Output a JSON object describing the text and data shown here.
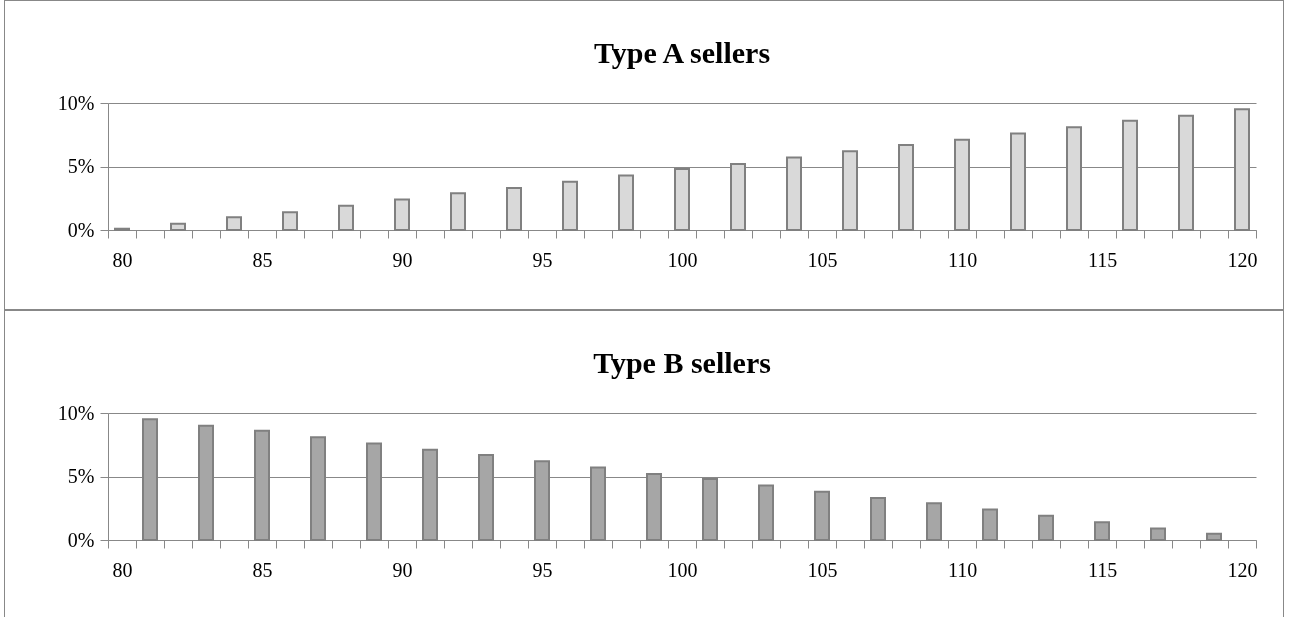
{
  "chart_data": [
    {
      "type": "bar",
      "title": "Type A sellers",
      "categories": [
        "80",
        null,
        null,
        null,
        null,
        "85",
        null,
        null,
        null,
        null,
        "90",
        null,
        null,
        null,
        null,
        "95",
        null,
        null,
        null,
        null,
        "100",
        null,
        null,
        null,
        null,
        "105",
        null,
        null,
        null,
        null,
        "110",
        null,
        null,
        null,
        null,
        "115",
        null,
        null,
        null,
        null,
        "120"
      ],
      "values": [
        0.1,
        null,
        0.5,
        null,
        1.0,
        null,
        1.4,
        null,
        1.9,
        null,
        2.4,
        null,
        2.9,
        null,
        3.3,
        null,
        3.8,
        null,
        4.3,
        null,
        4.8,
        null,
        5.2,
        null,
        5.7,
        null,
        6.2,
        null,
        6.7,
        null,
        7.1,
        null,
        7.6,
        null,
        8.1,
        null,
        8.6,
        null,
        9.0,
        null,
        9.5
      ],
      "color": "#d9d9d9",
      "ylim": [
        0,
        10
      ],
      "yticks": [
        {
          "value": 0,
          "label": "0%"
        },
        {
          "value": 5,
          "label": "5%"
        },
        {
          "value": 10,
          "label": "10%"
        }
      ],
      "grid": "y"
    },
    {
      "type": "bar",
      "title": "Type B sellers",
      "categories": [
        "80",
        null,
        null,
        null,
        null,
        "85",
        null,
        null,
        null,
        null,
        "90",
        null,
        null,
        null,
        null,
        "95",
        null,
        null,
        null,
        null,
        "100",
        null,
        null,
        null,
        null,
        "105",
        null,
        null,
        null,
        null,
        "110",
        null,
        null,
        null,
        null,
        "115",
        null,
        null,
        null,
        null,
        "120"
      ],
      "values": [
        null,
        9.5,
        null,
        9.0,
        null,
        8.6,
        null,
        8.1,
        null,
        7.6,
        null,
        7.1,
        null,
        6.7,
        null,
        6.2,
        null,
        5.7,
        null,
        5.2,
        null,
        4.8,
        null,
        4.3,
        null,
        3.8,
        null,
        3.3,
        null,
        2.9,
        null,
        2.4,
        null,
        1.9,
        null,
        1.4,
        null,
        0.9,
        null,
        0.5,
        null
      ],
      "color": "#a6a6a6",
      "ylim": [
        0,
        10
      ],
      "yticks": [
        {
          "value": 0,
          "label": "0%"
        },
        {
          "value": 5,
          "label": "5%"
        },
        {
          "value": 10,
          "label": "10%"
        }
      ],
      "grid": "y"
    }
  ]
}
